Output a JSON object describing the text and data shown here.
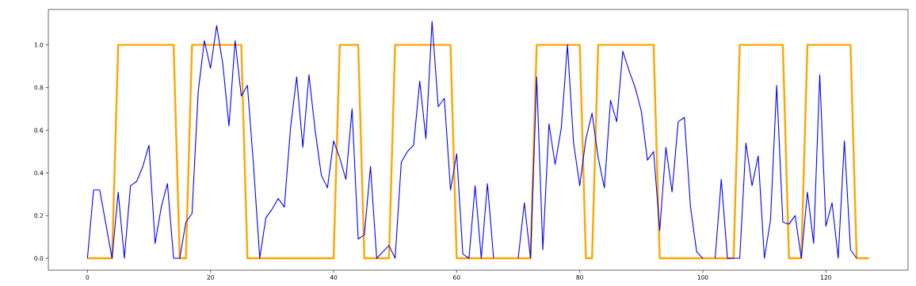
{
  "chart_data": {
    "type": "line",
    "x": [
      0,
      1,
      2,
      3,
      4,
      5,
      6,
      7,
      8,
      9,
      10,
      11,
      12,
      13,
      14,
      15,
      16,
      17,
      18,
      19,
      20,
      21,
      22,
      23,
      24,
      25,
      26,
      27,
      28,
      29,
      30,
      31,
      32,
      33,
      34,
      35,
      36,
      37,
      38,
      39,
      40,
      41,
      42,
      43,
      44,
      45,
      46,
      47,
      48,
      49,
      50,
      51,
      52,
      53,
      54,
      55,
      56,
      57,
      58,
      59,
      60,
      61,
      62,
      63,
      64,
      65,
      66,
      67,
      68,
      69,
      70,
      71,
      72,
      73,
      74,
      75,
      76,
      77,
      78,
      79,
      80,
      81,
      82,
      83,
      84,
      85,
      86,
      87,
      88,
      89,
      90,
      91,
      92,
      93,
      94,
      95,
      96,
      97,
      98,
      99,
      100,
      101,
      102,
      103,
      104,
      105,
      106,
      107,
      108,
      109,
      110,
      111,
      112,
      113,
      114,
      115,
      116,
      117,
      118,
      119,
      120,
      121,
      122,
      123,
      124,
      125,
      126,
      127
    ],
    "series": [
      {
        "color": "#ffa500",
        "values": [
          0,
          0,
          0,
          0,
          0,
          1,
          1,
          1,
          1,
          1,
          1,
          1,
          1,
          1,
          1,
          0,
          0,
          1,
          1,
          1,
          1,
          1,
          1,
          1,
          1,
          1,
          0,
          0,
          0,
          0,
          0,
          0,
          0,
          0,
          0,
          0,
          0,
          0,
          0,
          0,
          0,
          1,
          1,
          1,
          1,
          0,
          0,
          0,
          0,
          0,
          1,
          1,
          1,
          1,
          1,
          1,
          1,
          1,
          1,
          1,
          0,
          0,
          0,
          0,
          0,
          0,
          0,
          0,
          0,
          0,
          0,
          0,
          0,
          1,
          1,
          1,
          1,
          1,
          1,
          1,
          1,
          0,
          0,
          1,
          1,
          1,
          1,
          1,
          1,
          1,
          1,
          1,
          1,
          0,
          0,
          0,
          0,
          0,
          0,
          0,
          0,
          0,
          0,
          0,
          0,
          0,
          1,
          1,
          1,
          1,
          1,
          1,
          1,
          1,
          0,
          0,
          0,
          1,
          1,
          1,
          1,
          1,
          1,
          1,
          1,
          0,
          0,
          0
        ]
      },
      {
        "color": "#0000ff",
        "values": [
          0,
          0.32,
          0.32,
          0.16,
          0,
          0.31,
          0,
          0.34,
          0.36,
          0.43,
          0.53,
          0.07,
          0.24,
          0.35,
          0,
          0,
          0.17,
          0.21,
          0.78,
          1.02,
          0.89,
          1.09,
          0.91,
          0.62,
          1.02,
          0.76,
          0.81,
          0.43,
          0,
          0.19,
          0.23,
          0.28,
          0.24,
          0.61,
          0.85,
          0.52,
          0.86,
          0.6,
          0.39,
          0.33,
          0.55,
          0.47,
          0.37,
          0.7,
          0.09,
          0.11,
          0.43,
          0,
          0.03,
          0.06,
          0,
          0.45,
          0.5,
          0.53,
          0.83,
          0.56,
          1.11,
          0.71,
          0.75,
          0.32,
          0.49,
          0.02,
          0,
          0.34,
          0,
          0.35,
          0,
          null,
          null,
          null,
          0,
          0.26,
          0,
          0.85,
          0.04,
          0.63,
          0.44,
          0.61,
          1.0,
          0.54,
          0.34,
          0.56,
          0.68,
          0.47,
          0.33,
          0.74,
          0.64,
          0.97,
          0.88,
          0.8,
          0.69,
          0.46,
          0.5,
          0.13,
          0.52,
          0.31,
          0.64,
          0.66,
          0.24,
          0.03,
          0,
          null,
          0,
          0.37,
          0,
          0,
          0,
          0.54,
          0.34,
          0.48,
          0,
          0.18,
          0.81,
          0.17,
          0.16,
          0.2,
          0,
          0.31,
          0.07,
          0.86,
          0.15,
          0.26,
          0,
          0.55,
          0.04,
          0,
          null,
          null
        ]
      }
    ],
    "xlim": [
      -6.35,
      133.35
    ],
    "ylim": [
      -0.0555,
      1.1655
    ],
    "xticks": [
      0,
      20,
      40,
      60,
      80,
      100,
      120
    ],
    "yticks": [
      {
        "value": 0,
        "label": "0.0"
      },
      {
        "value": 0.2,
        "label": "0.2"
      },
      {
        "value": 0.4,
        "label": "0.4"
      },
      {
        "value": 0.6,
        "label": "0.6"
      },
      {
        "value": 0.8,
        "label": "0.8"
      },
      {
        "value": 1.0,
        "label": "1.0"
      }
    ],
    "grid": false,
    "marker": "none",
    "line_style": "solid"
  }
}
